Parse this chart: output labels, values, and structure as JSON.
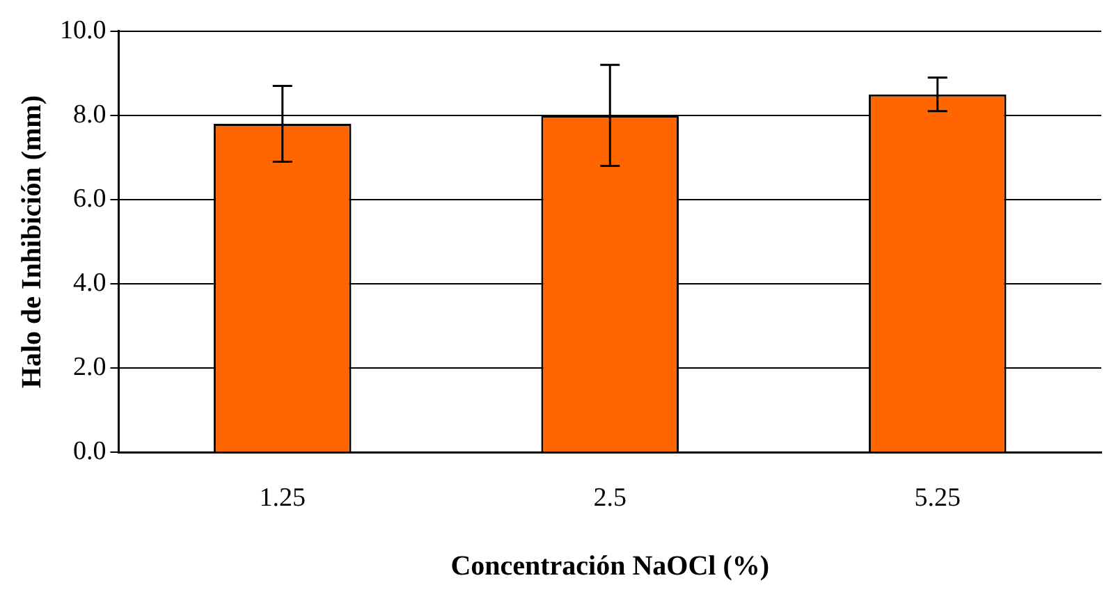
{
  "chart_data": {
    "type": "bar",
    "xlabel": "Concentración NaOCl (%)",
    "ylabel": "Halo de Inhibición (mm)",
    "categories": [
      "1.25",
      "2.5",
      "5.25"
    ],
    "values": [
      7.8,
      8.0,
      8.5
    ],
    "errors": [
      0.9,
      1.2,
      0.4
    ],
    "color": "#ff6600",
    "ylim": [
      0,
      10
    ],
    "yticks": [
      {
        "value": 0,
        "label": "0.0"
      },
      {
        "value": 2,
        "label": "2.0"
      },
      {
        "value": 4,
        "label": "4.0"
      },
      {
        "value": 6,
        "label": "6.0"
      },
      {
        "value": 8,
        "label": "8.0"
      },
      {
        "value": 10,
        "label": "10.0"
      }
    ],
    "grid": "y",
    "legend": false
  }
}
